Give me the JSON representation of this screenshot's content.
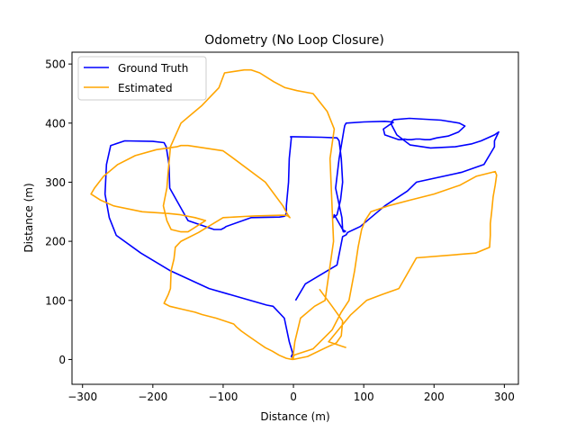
{
  "chart_data": {
    "type": "line",
    "title": "Odometry (No Loop Closure)",
    "xlabel": "Distance (m)",
    "ylabel": "Distance (m)",
    "xlim": [
      -315,
      320
    ],
    "ylim": [
      -42,
      520
    ],
    "xticks": [
      -300,
      -200,
      -100,
      0,
      100,
      200,
      300
    ],
    "yticks": [
      0,
      100,
      200,
      300,
      400,
      500
    ],
    "grid": false,
    "legend_position": "upper-left",
    "series": [
      {
        "name": "Ground Truth",
        "color": "#0000ff",
        "x": [
          0,
          -3,
          -1,
          -6,
          -13,
          -29,
          -38,
          -120,
          -175,
          -217,
          -252,
          -262,
          -268,
          -266,
          -260,
          -240,
          -200,
          -184,
          -181,
          -177,
          -176,
          -150,
          -113,
          -103,
          -98,
          -96,
          -60,
          -20,
          -14,
          -12,
          -10,
          -10,
          -7,
          -6,
          -3,
          -4,
          0,
          40,
          62,
          65,
          68,
          70,
          67,
          62,
          60,
          57,
          58,
          70,
          72,
          74,
          73,
          71,
          70,
          69,
          60,
          65,
          72,
          73,
          75,
          100,
          130,
          140,
          142,
          140,
          134,
          128,
          130,
          150,
          158,
          162,
          168,
          174,
          180,
          187,
          194,
          204,
          220,
          235,
          244,
          236,
          210,
          165,
          143,
          139,
          139,
          140,
          147,
          166,
          195,
          230,
          254,
          267,
          286,
          292,
          286,
          286,
          280,
          271,
          240,
          175,
          162,
          130,
          95,
          77,
          75,
          70,
          62,
          17,
          3
        ],
        "y": [
          0,
          5,
          10,
          30,
          70,
          90,
          92,
          120,
          150,
          180,
          210,
          240,
          280,
          330,
          362,
          370,
          369,
          367,
          360,
          330,
          290,
          235,
          220,
          220,
          223,
          225,
          240,
          241,
          242,
          243,
          248,
          260,
          300,
          340,
          375,
          377,
          377,
          376,
          375,
          370,
          340,
          300,
          270,
          245,
          243,
          240,
          245,
          220,
          218,
          217,
          216,
          216,
          220,
          240,
          290,
          340,
          390,
          396,
          400,
          402,
          403,
          402,
          401,
          400,
          395,
          390,
          380,
          372,
          373,
          372,
          372,
          373,
          373,
          372,
          372,
          375,
          378,
          385,
          395,
          400,
          405,
          408,
          406,
          402,
          400,
          396,
          380,
          363,
          358,
          360,
          365,
          370,
          380,
          385,
          370,
          360,
          348,
          330,
          317,
          300,
          285,
          260,
          225,
          215,
          211,
          208,
          160,
          128,
          100
        ]
      },
      {
        "name": "Estimated",
        "color": "#ffa500",
        "x": [
          37,
          45,
          55,
          70,
          68,
          61,
          46,
          20,
          0,
          0,
          2,
          10,
          30,
          45,
          57,
          52,
          58,
          48,
          28,
          5,
          -12,
          -28,
          -48,
          -60,
          -70,
          -98,
          -106,
          -130,
          -160,
          -175,
          -178,
          -180,
          -185,
          -180,
          -174,
          -160,
          -150,
          -125,
          -140,
          -161,
          -178,
          -215,
          -256,
          -275,
          -288,
          -283,
          -270,
          -250,
          -225,
          -195,
          -166,
          -160,
          -150,
          -100,
          -85,
          -40,
          -15,
          -8,
          -5,
          -5,
          -8,
          -12,
          -14,
          -20,
          -55,
          -70,
          -85,
          -100,
          -135,
          -160,
          -168,
          -170,
          -174,
          -175,
          -178,
          -184,
          -176,
          -158,
          -140,
          -130,
          -110,
          -85,
          -81,
          -74,
          -62,
          -50,
          -40,
          -30,
          -20,
          -10,
          -2,
          -2,
          2,
          28,
          55,
          68,
          79,
          87,
          92,
          97,
          102,
          110,
          135,
          167,
          200,
          237,
          260,
          287,
          289,
          287,
          284,
          282,
          280,
          280,
          279,
          259,
          175,
          150,
          126,
          104,
          81,
          50,
          75
        ],
        "y": [
          119,
          106,
          90,
          65,
          40,
          28,
          20,
          5,
          0,
          10,
          30,
          70,
          90,
          100,
          200,
          340,
          390,
          420,
          450,
          455,
          460,
          470,
          485,
          490,
          490,
          485,
          460,
          430,
          400,
          360,
          320,
          290,
          260,
          235,
          220,
          216,
          216,
          235,
          240,
          245,
          247,
          250,
          260,
          270,
          280,
          290,
          310,
          330,
          345,
          355,
          360,
          362,
          362,
          353,
          340,
          300,
          260,
          245,
          240,
          240,
          243,
          244,
          244,
          244,
          243,
          242,
          241,
          240,
          215,
          200,
          190,
          170,
          150,
          120,
          110,
          95,
          90,
          85,
          80,
          76,
          70,
          60,
          55,
          48,
          38,
          28,
          20,
          14,
          7,
          2,
          0,
          3,
          8,
          18,
          50,
          80,
          100,
          150,
          190,
          220,
          235,
          250,
          260,
          270,
          280,
          295,
          310,
          318,
          312,
          295,
          275,
          250,
          230,
          210,
          190,
          180,
          172,
          120,
          110,
          100,
          75,
          30,
          20
        ]
      }
    ]
  }
}
